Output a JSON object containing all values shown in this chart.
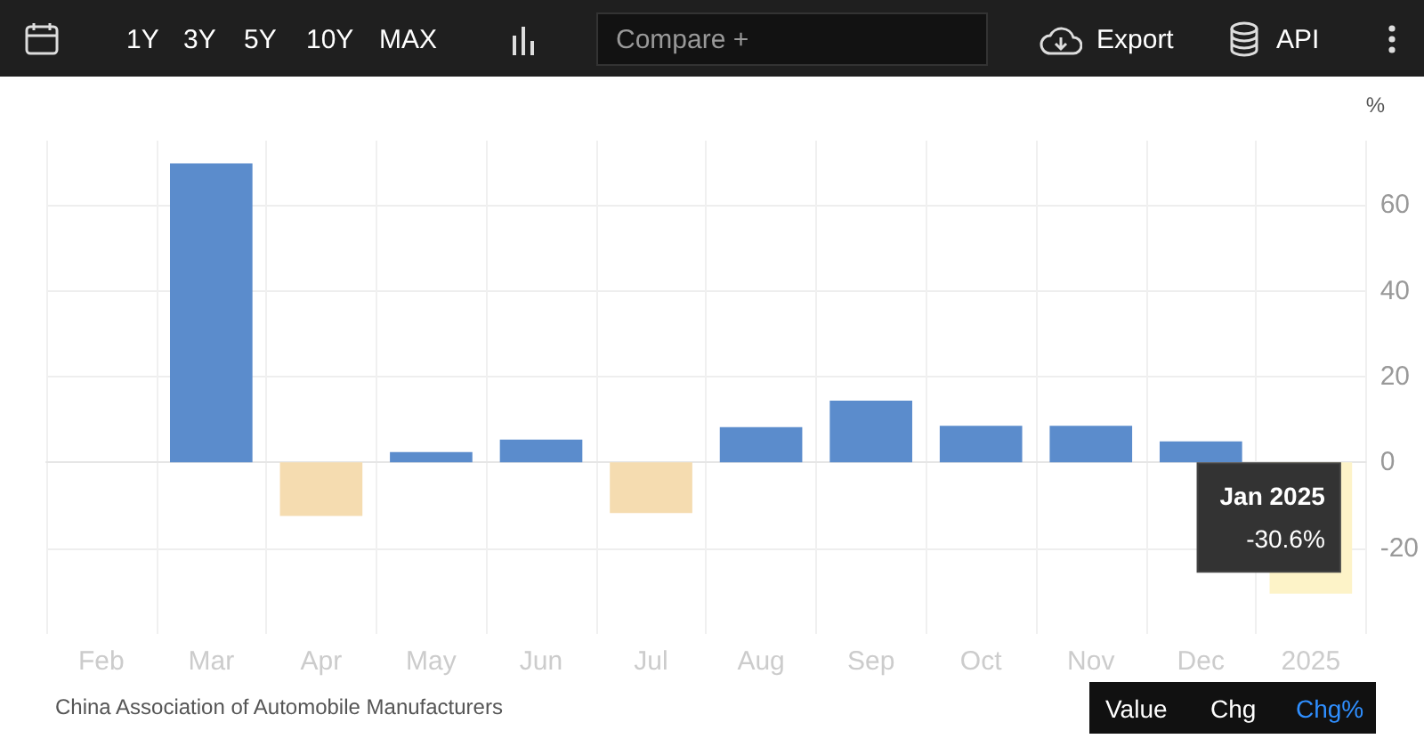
{
  "chart_data": {
    "type": "bar",
    "ylabel": "%",
    "categories": [
      "Feb",
      "Mar",
      "Apr",
      "May",
      "Jun",
      "Jul",
      "Aug",
      "Sep",
      "Oct",
      "Nov",
      "Dec",
      "2025"
    ],
    "values": [
      null,
      69.7,
      -12.5,
      2.4,
      5.3,
      -11.8,
      8.2,
      14.4,
      8.5,
      8.5,
      4.9,
      -30.6
    ],
    "colors": [
      "#5b8ccc",
      "#5b8ccc",
      "#f5dcb0",
      "#5b8ccc",
      "#5b8ccc",
      "#f5dcb0",
      "#5b8ccc",
      "#5b8ccc",
      "#5b8ccc",
      "#5b8ccc",
      "#5b8ccc",
      "#fdf3c8"
    ],
    "value_labels": [
      null,
      null,
      null,
      null,
      null,
      null,
      null,
      null,
      null,
      null,
      null,
      "-30.6%"
    ],
    "ylim": [
      -40,
      75
    ],
    "yticks": [
      -20,
      0,
      20,
      40,
      60
    ],
    "grid": true,
    "annotations": [
      "1Y",
      "3Y",
      "5Y",
      "10Y",
      "MAX",
      "Compare +",
      "Export",
      "API",
      "China Association of Automobile Manufacturers",
      "Value",
      "Chg",
      "Chg%",
      "Jan 2025"
    ]
  }
}
